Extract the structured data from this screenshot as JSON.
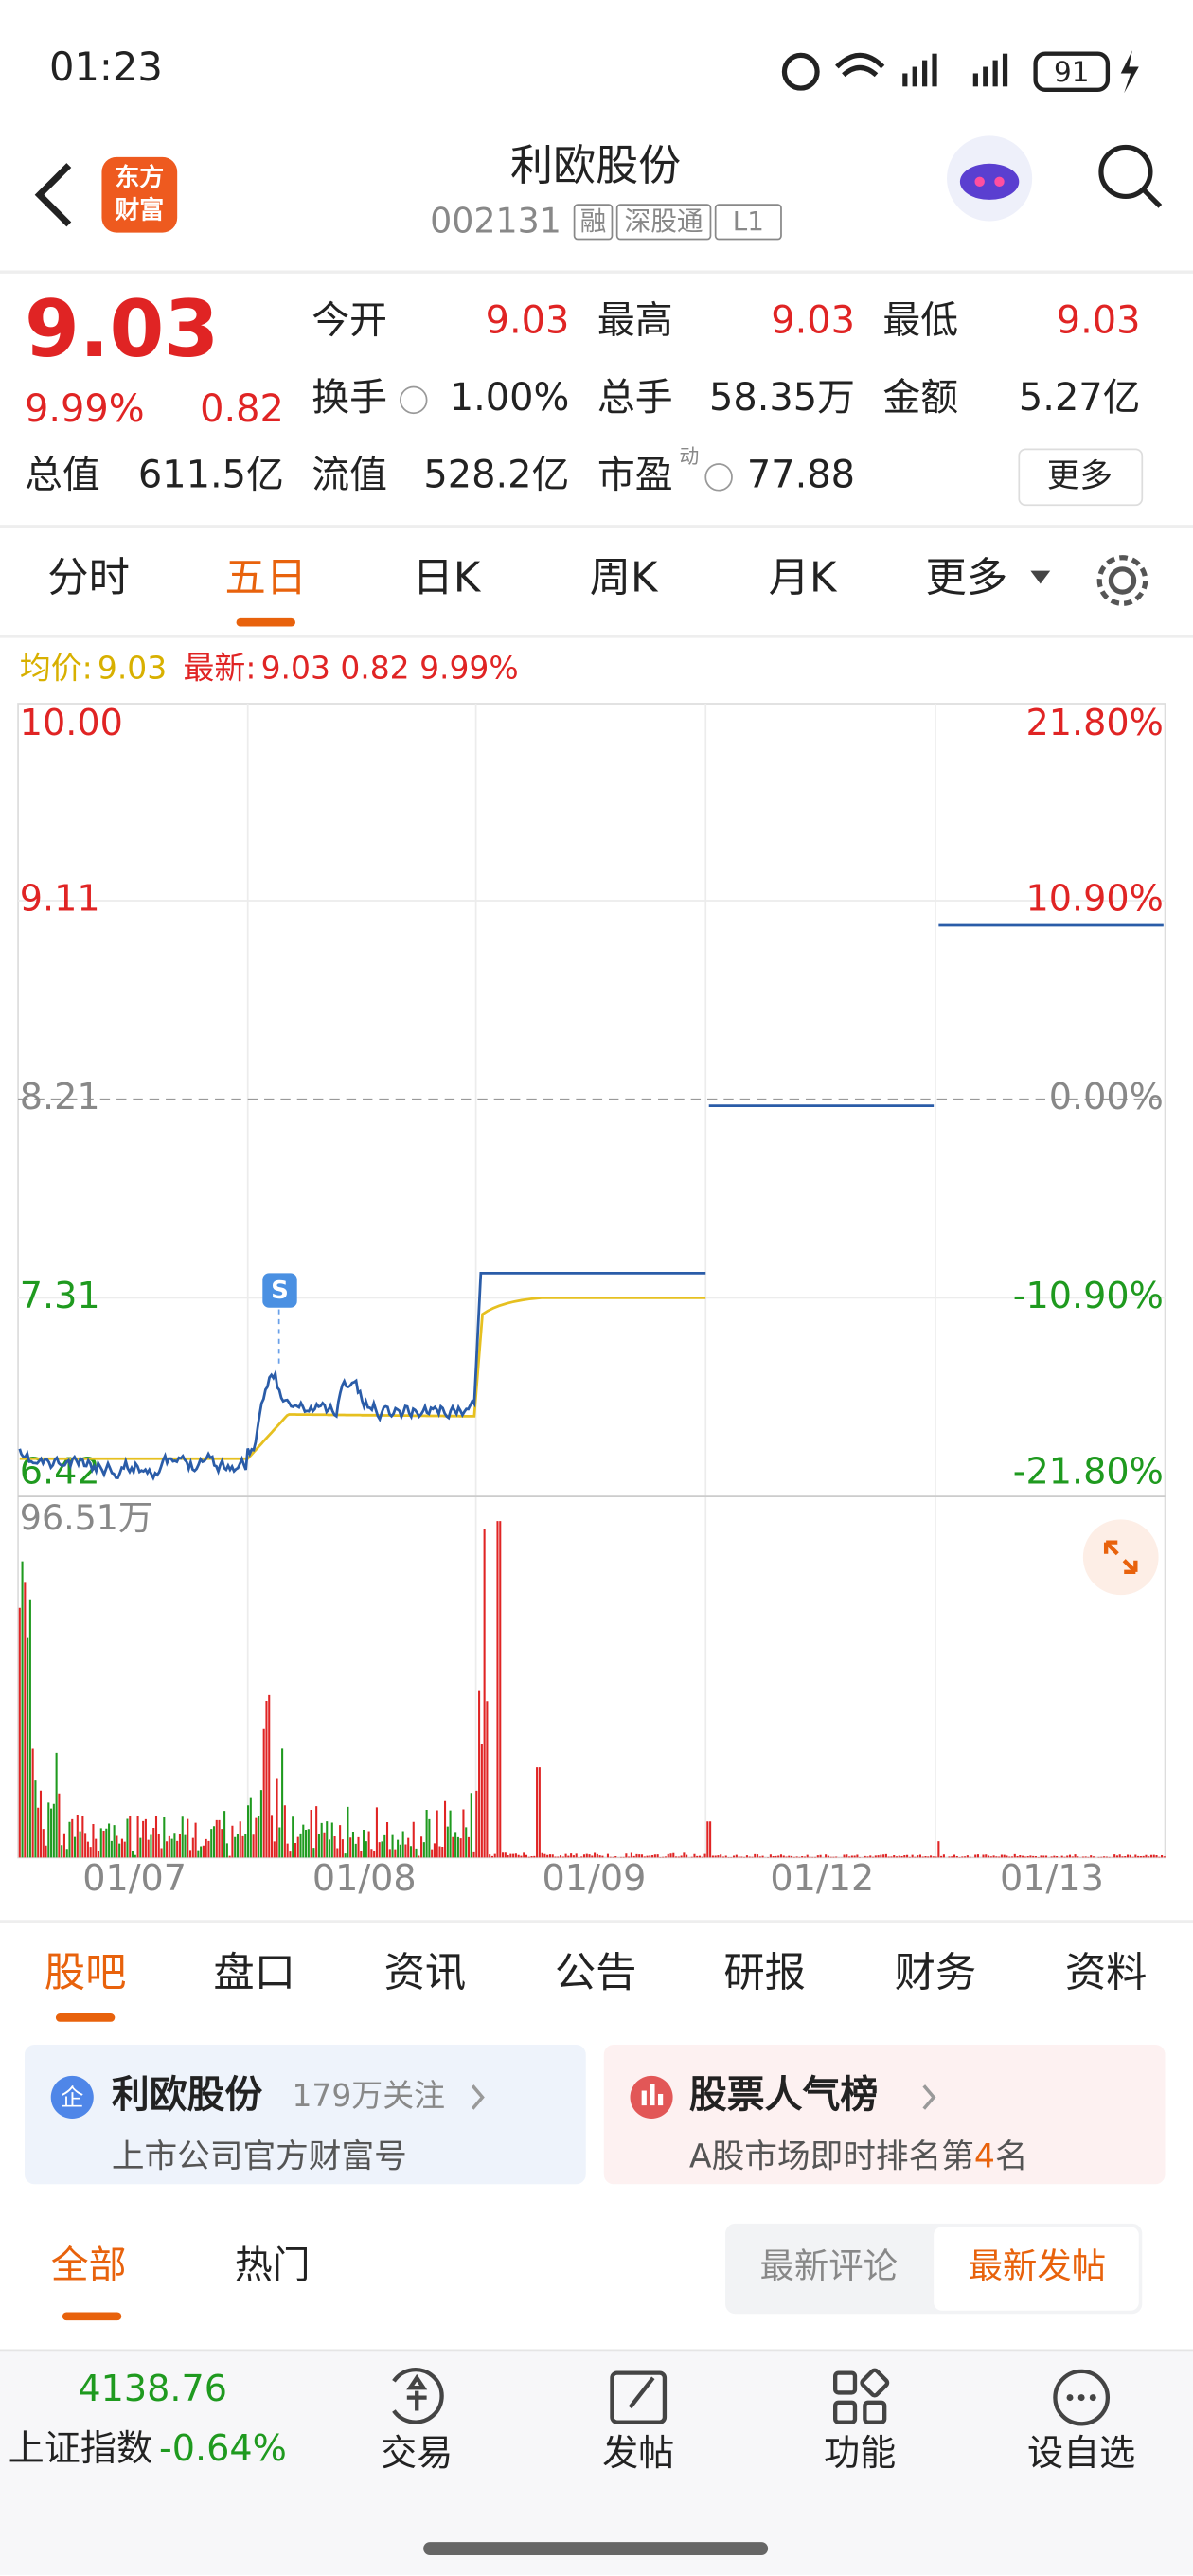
{
  "status": {
    "time": "01:23",
    "battery": "91"
  },
  "header": {
    "logo": [
      "东方",
      "财富"
    ],
    "title": "利欧股份",
    "code": "002131",
    "tags": [
      "融",
      "深股通",
      "L1"
    ]
  },
  "quote": {
    "price": "9.03",
    "change_pct": "9.99%",
    "change": "0.82",
    "stats": [
      {
        "label": "今开",
        "value": "9.03"
      },
      {
        "label": "最高",
        "value": "9.03"
      },
      {
        "label": "最低",
        "value": "9.03"
      },
      {
        "label": "换手",
        "value": "1.00%"
      },
      {
        "label": "总手",
        "value": "58.35万"
      },
      {
        "label": "金额",
        "value": "5.27亿"
      },
      {
        "label": "总值",
        "value": "611.5亿"
      },
      {
        "label": "流值",
        "value": "528.2亿"
      },
      {
        "label": "市盈",
        "value": "77.88",
        "sup": "动"
      }
    ],
    "more": "更多"
  },
  "tabs": {
    "items": [
      "分时",
      "五日",
      "日K",
      "周K",
      "月K",
      "更多"
    ],
    "active": 1
  },
  "legend": {
    "avg_label": "均价:",
    "avg": "9.03",
    "latest_label": "最新:",
    "latest": "9.03 0.82 9.99%"
  },
  "chart": {
    "left_labels": [
      "10.00",
      "9.11",
      "8.21",
      "7.31",
      "6.42"
    ],
    "right_labels": [
      "21.80%",
      "10.90%",
      "0.00%",
      "-10.90%",
      "-21.80%"
    ],
    "volume_max": "96.51万",
    "dates": [
      "01/07",
      "01/08",
      "01/09",
      "01/12",
      "01/13"
    ],
    "marker": "S"
  },
  "subtabs": {
    "items": [
      "股吧",
      "盘口",
      "资讯",
      "公告",
      "研报",
      "财务",
      "资料"
    ],
    "active": 0
  },
  "cards": [
    {
      "icon": "企",
      "title": "利欧股份",
      "follow": "179万关注",
      "sub": "上市公司官方财富号"
    },
    {
      "title": "股票人气榜",
      "sub": [
        "A股市场即时排名第",
        "4",
        "名"
      ]
    }
  ],
  "filter": {
    "items": [
      "全部",
      "热门"
    ],
    "sort": [
      "最新评论",
      "最新发帖"
    ]
  },
  "bottom": {
    "index_value": "4138.76",
    "index_name": "上证指数",
    "index_change": "-0.64%",
    "items": [
      "交易",
      "发帖",
      "功能",
      "设自选"
    ]
  }
}
